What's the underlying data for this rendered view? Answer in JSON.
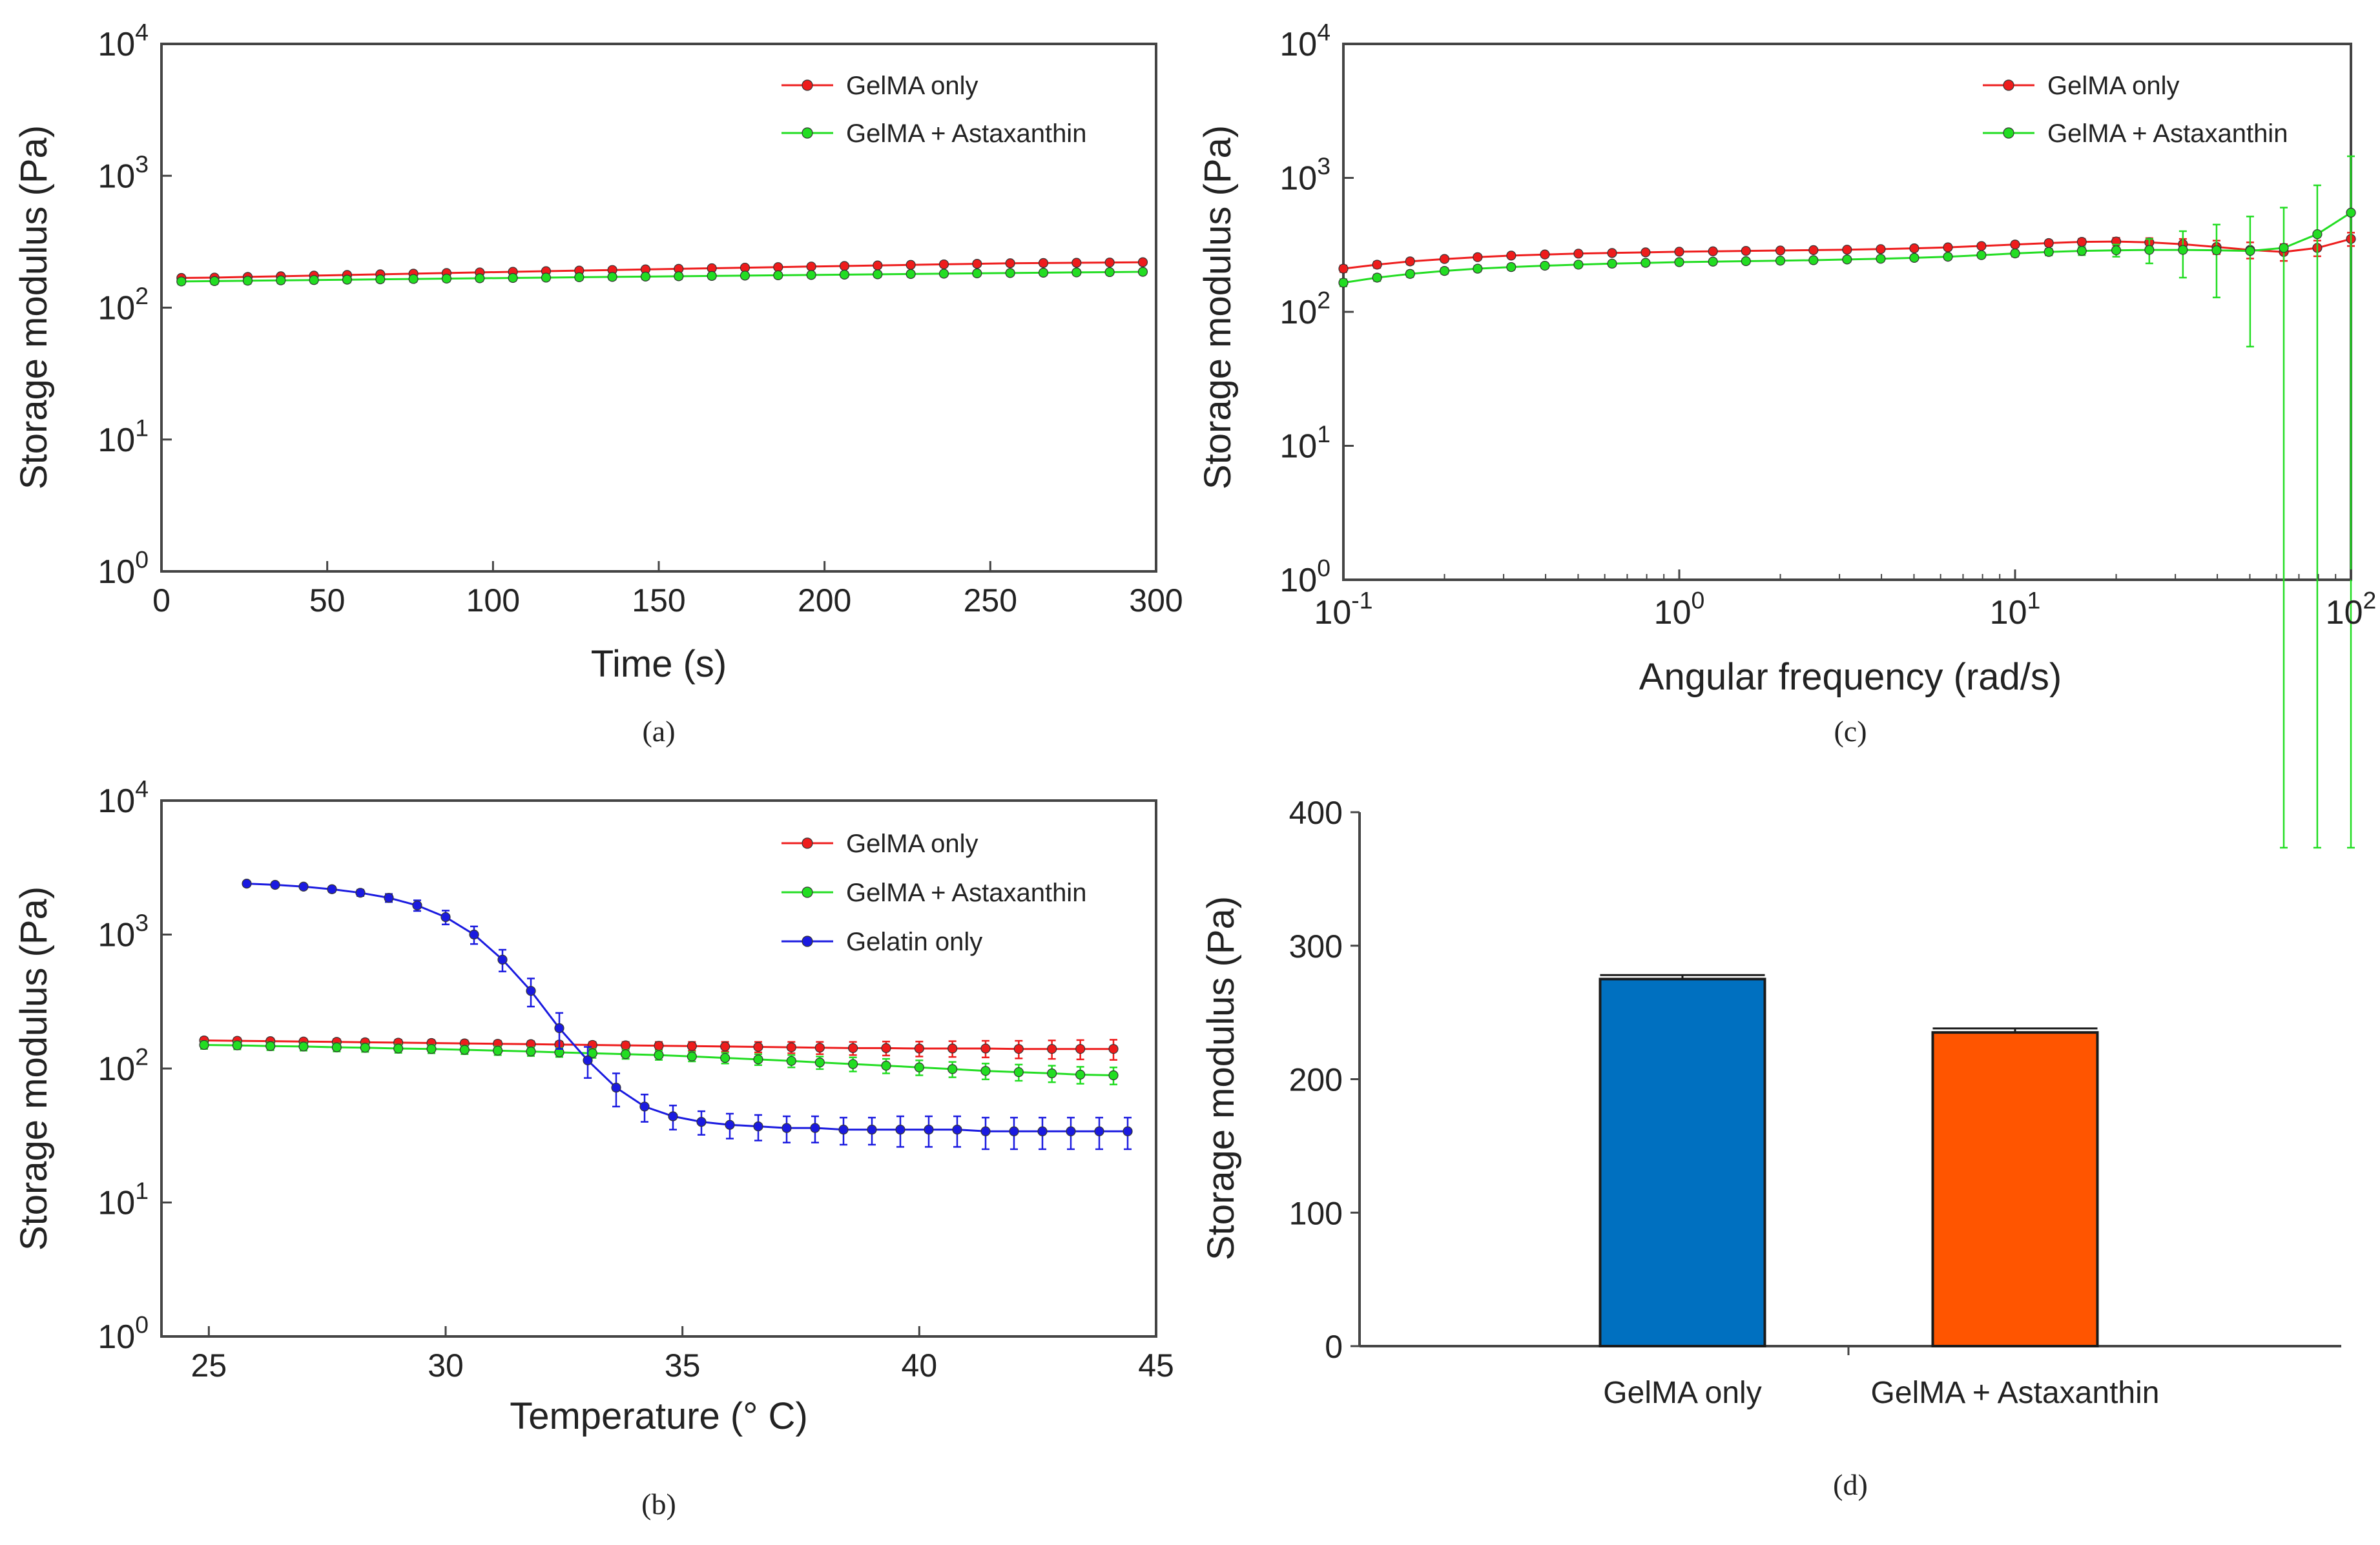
{
  "colors": {
    "gelma": "#ee1c1c",
    "astaxanthin": "#22dd22",
    "gelatin": "#1a1ae0",
    "bar_gelma": "#0070c0",
    "bar_astaxanthin": "#ff5500",
    "axis": "#444444"
  },
  "chart_data": [
    {
      "id": "a",
      "type": "line",
      "caption": "(a)",
      "xlabel": "Time (s)",
      "ylabel": "Storage modulus (Pa)",
      "xscale": "linear",
      "yscale": "log",
      "xlim": [
        0,
        300
      ],
      "ylim": [
        1,
        10000
      ],
      "xticks": [
        0,
        50,
        100,
        150,
        200,
        250,
        300
      ],
      "xtick_labels": [
        "0",
        "50",
        "100",
        "150",
        "200",
        "250",
        "300"
      ],
      "ytick_labels": [
        [
          "10",
          "0"
        ],
        [
          "10",
          "1"
        ],
        [
          "10",
          "2"
        ],
        [
          "10",
          "3"
        ],
        [
          "10",
          "4"
        ]
      ],
      "legend": "top-right",
      "series": [
        {
          "name": "GelMA only",
          "color_key": "gelma",
          "x": [
            6,
            16,
            26,
            36,
            46,
            56,
            66,
            76,
            86,
            96,
            106,
            116,
            126,
            136,
            146,
            156,
            166,
            176,
            186,
            196,
            206,
            216,
            226,
            236,
            246,
            256,
            266,
            276,
            286,
            296
          ],
          "y": [
            168,
            169,
            171,
            173,
            175,
            177,
            179,
            181,
            183,
            185,
            187,
            189,
            191,
            193,
            195,
            197,
            199,
            201,
            203,
            205,
            207,
            209,
            211,
            213,
            215,
            217,
            218,
            219,
            220,
            221
          ],
          "err": [
            7,
            7,
            7,
            7,
            7,
            7,
            7,
            7,
            7,
            7,
            7,
            7,
            7,
            7,
            7,
            7,
            7,
            7,
            7,
            7,
            7,
            7,
            7,
            7,
            7,
            7,
            7,
            7,
            7,
            7
          ]
        },
        {
          "name": "GelMA + Astaxanthin",
          "color_key": "astaxanthin",
          "x": [
            6,
            16,
            26,
            36,
            46,
            56,
            66,
            76,
            86,
            96,
            106,
            116,
            126,
            136,
            146,
            156,
            166,
            176,
            186,
            196,
            206,
            216,
            226,
            236,
            246,
            256,
            266,
            276,
            286,
            296
          ],
          "y": [
            158,
            159,
            160,
            161,
            162,
            163,
            164,
            165,
            166,
            167,
            168,
            169,
            170,
            171,
            172,
            173,
            174,
            175,
            176,
            177,
            178,
            179,
            180,
            181,
            182,
            183,
            184,
            185,
            186,
            187
          ],
          "err": [
            8,
            8,
            8,
            8,
            8,
            8,
            8,
            8,
            8,
            8,
            8,
            8,
            8,
            8,
            8,
            8,
            8,
            8,
            8,
            8,
            8,
            8,
            8,
            8,
            8,
            8,
            8,
            8,
            8,
            8
          ]
        }
      ]
    },
    {
      "id": "b",
      "type": "line",
      "caption": "(b)",
      "xlabel": "Temperature (° C)",
      "ylabel": "Storage modulus (Pa)",
      "xscale": "linear",
      "yscale": "log",
      "xlim": [
        24,
        45
      ],
      "ylim": [
        1,
        10000
      ],
      "xticks": [
        25,
        30,
        35,
        40,
        45
      ],
      "xtick_labels": [
        "25",
        "30",
        "35",
        "40",
        "45"
      ],
      "ytick_labels": [
        [
          "10",
          "0"
        ],
        [
          "10",
          "1"
        ],
        [
          "10",
          "2"
        ],
        [
          "10",
          "3"
        ],
        [
          "10",
          "4"
        ]
      ],
      "legend": "top-right",
      "series": [
        {
          "name": "GelMA only",
          "color_key": "gelma",
          "x": [
            24.9,
            25.6,
            26.3,
            27.0,
            27.7,
            28.3,
            29.0,
            29.7,
            30.4,
            31.1,
            31.8,
            32.4,
            33.1,
            33.8,
            34.5,
            35.2,
            35.9,
            36.6,
            37.3,
            37.9,
            38.6,
            39.3,
            40.0,
            40.7,
            41.4,
            42.1,
            42.8,
            43.4,
            44.1
          ],
          "y": [
            162,
            161,
            160,
            159,
            158,
            157,
            156,
            155,
            154,
            153,
            152,
            151,
            150,
            149,
            148,
            147,
            146,
            145,
            144,
            143,
            142,
            142,
            141,
            141,
            141,
            140,
            140,
            140,
            140
          ],
          "err": [
            8,
            8,
            8,
            8,
            8,
            8,
            8,
            8,
            8,
            8,
            8,
            8,
            8,
            9,
            10,
            11,
            12,
            13,
            14,
            15,
            16,
            17,
            18,
            19,
            20,
            21,
            22,
            23,
            24
          ]
        },
        {
          "name": "GelMA + Astaxanthin",
          "color_key": "astaxanthin",
          "x": [
            24.9,
            25.6,
            26.3,
            27.0,
            27.7,
            28.3,
            29.0,
            29.7,
            30.4,
            31.1,
            31.8,
            32.4,
            33.1,
            33.8,
            34.5,
            35.2,
            35.9,
            36.6,
            37.3,
            37.9,
            38.6,
            39.3,
            40.0,
            40.7,
            41.4,
            42.1,
            42.8,
            43.4,
            44.1
          ],
          "y": [
            150,
            149,
            147,
            146,
            144,
            143,
            141,
            140,
            138,
            136,
            134,
            132,
            130,
            128,
            126,
            123,
            120,
            117,
            114,
            111,
            108,
            105,
            102,
            99,
            96,
            94,
            92,
            90,
            89
          ],
          "err": [
            10,
            10,
            10,
            10,
            10,
            10,
            10,
            10,
            10,
            10,
            10,
            10,
            10,
            10,
            10,
            10,
            11,
            11,
            12,
            12,
            13,
            13,
            13,
            13,
            13,
            13,
            13,
            13,
            13
          ]
        },
        {
          "name": "Gelatin only",
          "color_key": "gelatin",
          "x": [
            25.8,
            26.4,
            27.0,
            27.6,
            28.2,
            28.8,
            29.4,
            30.0,
            30.6,
            31.2,
            31.8,
            32.4,
            33.0,
            33.6,
            34.2,
            34.8,
            35.4,
            36.0,
            36.6,
            37.2,
            37.8,
            38.4,
            39.0,
            39.6,
            40.2,
            40.8,
            41.4,
            42.0,
            42.6,
            43.2,
            43.8,
            44.4
          ],
          "y": [
            2400,
            2350,
            2280,
            2180,
            2050,
            1880,
            1650,
            1350,
            1000,
            650,
            380,
            200,
            115,
            72,
            52,
            44,
            40,
            38,
            37,
            36,
            36,
            35,
            35,
            35,
            35,
            35,
            34,
            34,
            34,
            34,
            34,
            34
          ],
          "err": [
            80,
            80,
            90,
            100,
            110,
            130,
            150,
            160,
            150,
            120,
            90,
            60,
            30,
            20,
            12,
            9,
            8,
            8,
            8,
            8,
            8,
            8,
            8,
            9,
            9,
            9,
            9,
            9,
            9,
            9,
            9,
            9
          ]
        }
      ]
    },
    {
      "id": "c",
      "type": "line",
      "caption": "(c)",
      "xlabel": "Angular frequency (rad/s)",
      "ylabel": "Storage modulus (Pa)",
      "xscale": "log",
      "yscale": "log",
      "xlim": [
        0.1,
        100
      ],
      "ylim": [
        1,
        10000
      ],
      "xtick_labels": [
        [
          "10",
          "-1"
        ],
        [
          "10",
          "0"
        ],
        [
          "10",
          "1"
        ],
        [
          "10",
          "2"
        ]
      ],
      "ytick_labels": [
        [
          "10",
          "0"
        ],
        [
          "10",
          "1"
        ],
        [
          "10",
          "2"
        ],
        [
          "10",
          "3"
        ],
        [
          "10",
          "4"
        ]
      ],
      "legend": "top-right",
      "series": [
        {
          "name": "GelMA only",
          "color_key": "gelma",
          "x": [
            0.1,
            0.126,
            0.158,
            0.2,
            0.251,
            0.316,
            0.398,
            0.501,
            0.631,
            0.794,
            1.0,
            1.26,
            1.58,
            2.0,
            2.51,
            3.16,
            3.98,
            5.01,
            6.31,
            7.94,
            10.0,
            12.6,
            15.8,
            20.0,
            25.1,
            31.6,
            39.8,
            50.1,
            63.1,
            79.4,
            100
          ],
          "y": [
            210,
            225,
            238,
            248,
            256,
            263,
            268,
            272,
            275,
            278,
            281,
            283,
            285,
            287,
            289,
            291,
            294,
            298,
            303,
            310,
            318,
            326,
            333,
            335,
            330,
            320,
            305,
            290,
            280,
            300,
            350
          ],
          "err": [
            12,
            12,
            12,
            10,
            10,
            10,
            10,
            10,
            10,
            10,
            10,
            10,
            10,
            10,
            10,
            10,
            10,
            10,
            12,
            12,
            14,
            16,
            18,
            22,
            25,
            30,
            35,
            40,
            40,
            40,
            40
          ]
        },
        {
          "name": "GelMA + Astaxanthin",
          "color_key": "astaxanthin",
          "x": [
            0.1,
            0.126,
            0.158,
            0.2,
            0.251,
            0.316,
            0.398,
            0.501,
            0.631,
            0.794,
            1.0,
            1.26,
            1.58,
            2.0,
            2.51,
            3.16,
            3.98,
            5.01,
            6.31,
            7.94,
            10.0,
            12.6,
            15.8,
            20.0,
            25.1,
            31.6,
            39.8,
            50.1,
            63.1,
            79.4,
            100
          ],
          "y": [
            165,
            180,
            192,
            202,
            210,
            216,
            221,
            225,
            229,
            232,
            235,
            237,
            239,
            241,
            243,
            246,
            249,
            253,
            258,
            265,
            273,
            280,
            285,
            288,
            290,
            290,
            288,
            285,
            300,
            380,
            550
          ],
          "err": [
            10,
            10,
            10,
            10,
            10,
            10,
            10,
            10,
            10,
            10,
            10,
            10,
            10,
            10,
            10,
            10,
            10,
            10,
            10,
            12,
            14,
            16,
            20,
            30,
            60,
            110,
            160,
            230,
            300,
            500,
            900
          ]
        }
      ]
    },
    {
      "id": "d",
      "type": "bar",
      "caption": "(d)",
      "xlabel": "",
      "ylabel": "Storage modulus (Pa)",
      "ylim": [
        0,
        400
      ],
      "yticks": [
        0,
        100,
        200,
        300,
        400
      ],
      "categories": [
        "GelMA only",
        "GelMA + Astaxanthin"
      ],
      "values": [
        275,
        235
      ],
      "errors": [
        3,
        3
      ],
      "color_keys": [
        "bar_gelma",
        "bar_astaxanthin"
      ]
    }
  ]
}
